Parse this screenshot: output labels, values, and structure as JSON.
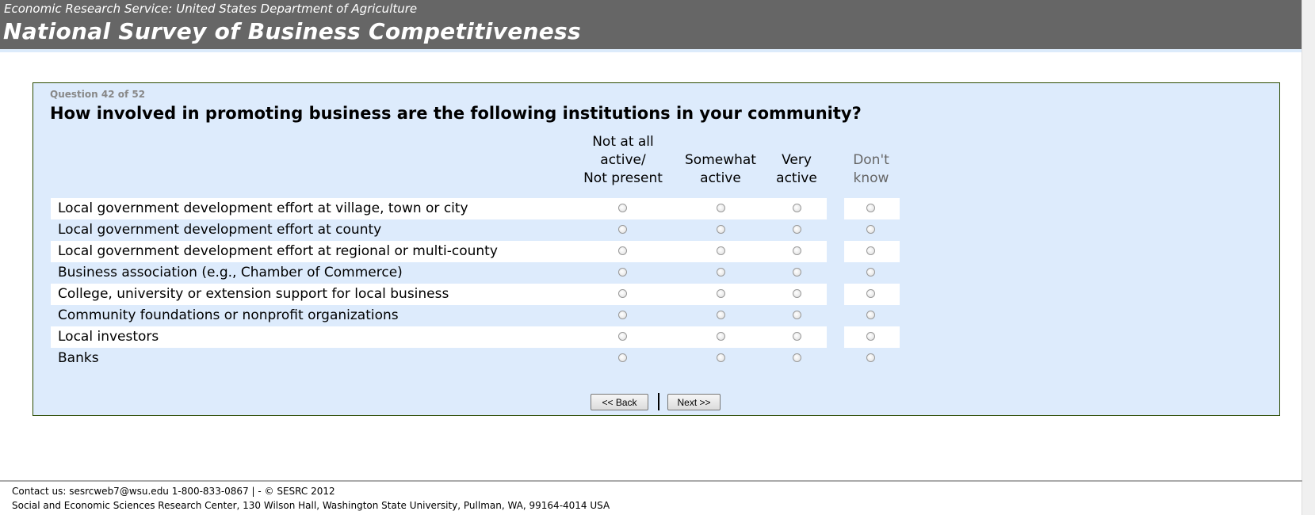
{
  "header": {
    "agency": "Economic Research Service: United States Department of Agriculture",
    "title": "National Survey of Business Competitiveness"
  },
  "question": {
    "number": "Question 42 of 52",
    "text": "How involved in promoting business are the following institutions in your community?",
    "columns": [
      "Not at all\nactive/\nNot present",
      "Somewhat\nactive",
      "Very\nactive",
      "Don't\nknow"
    ],
    "rows": [
      "Local government development effort at village, town or city",
      "Local government development effort at county",
      "Local government development effort at regional or multi-county",
      "Business association (e.g., Chamber of Commerce)",
      "College, university or extension support for local business",
      "Community foundations or nonprofit organizations",
      "Local investors",
      "Banks"
    ]
  },
  "nav": {
    "back": "<< Back",
    "next": "Next >>"
  },
  "footer": {
    "contact": "Contact us: sesrcweb7@wsu.edu 1-800-833-0867 | - © SESRC 2012",
    "address": "Social and Economic Sciences Research Center, 130 Wilson Hall, Washington State University, Pullman, WA, 99164-4014 USA"
  },
  "colors": {
    "header_bg": "#666666",
    "panel_bg": "#ddebfc",
    "panel_border": "#2a4a00",
    "dont_know_text": "#666666"
  }
}
